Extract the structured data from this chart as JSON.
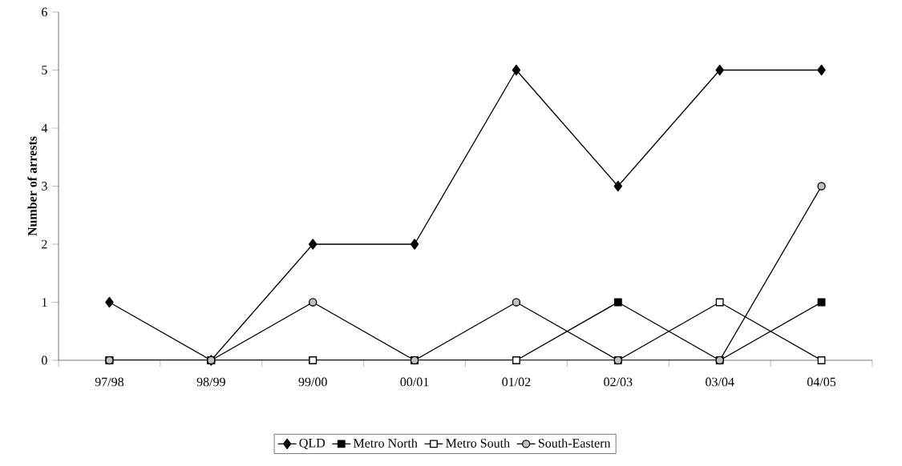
{
  "chart_data": {
    "type": "line",
    "ylabel": "Number of arrests",
    "categories": [
      "97/98",
      "98/99",
      "99/00",
      "00/01",
      "01/02",
      "02/03",
      "03/04",
      "04/05"
    ],
    "series": [
      {
        "name": "QLD",
        "color": "#000000",
        "marker": "diamond",
        "values": [
          1,
          0,
          2,
          2,
          5,
          3,
          5,
          5
        ]
      },
      {
        "name": "Metro North",
        "color": "#000000",
        "marker": "square",
        "values": [
          0,
          0,
          0,
          0,
          0,
          1,
          0,
          1
        ]
      },
      {
        "name": "Metro South",
        "color": "#ffffff",
        "marker": "square",
        "values": [
          0,
          0,
          0,
          0,
          0,
          0,
          1,
          0
        ]
      },
      {
        "name": "South-Eastern",
        "color": "#c0c0c0",
        "marker": "circle",
        "values": [
          0,
          0,
          1,
          0,
          1,
          0,
          0,
          3
        ]
      }
    ],
    "ylim": [
      0,
      6
    ],
    "yticks": [
      0,
      1,
      2,
      3,
      4,
      5,
      6
    ],
    "grid": false,
    "legend": "bottom",
    "line_style": "solid"
  }
}
